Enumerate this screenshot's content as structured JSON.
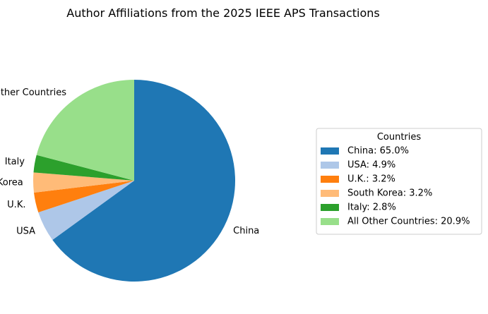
{
  "chart_data": {
    "type": "pie",
    "title": "Author Affiliations from the 2025 IEEE APS Transactions",
    "start_angle_deg": 90,
    "direction": "clockwise",
    "slices": [
      {
        "label": "China",
        "value": 65.0,
        "color": "#1f77b4",
        "legend": "China: 65.0%"
      },
      {
        "label": "USA",
        "value": 4.9,
        "color": "#aec7e8",
        "legend": "USA: 4.9%"
      },
      {
        "label": "U.K.",
        "value": 3.2,
        "color": "#ff7f0e",
        "legend": "U.K.: 3.2%"
      },
      {
        "label": "South Korea",
        "value": 3.2,
        "color": "#ffbb78",
        "legend": "South Korea: 3.2%"
      },
      {
        "label": "Italy",
        "value": 2.8,
        "color": "#2ca02c",
        "legend": "Italy: 2.8%"
      },
      {
        "label": "All Other Countries",
        "value": 20.9,
        "color": "#98df8a",
        "legend": "All Other Countries: 20.9%"
      }
    ],
    "legend": {
      "title": "Countries",
      "placement": "right"
    }
  }
}
